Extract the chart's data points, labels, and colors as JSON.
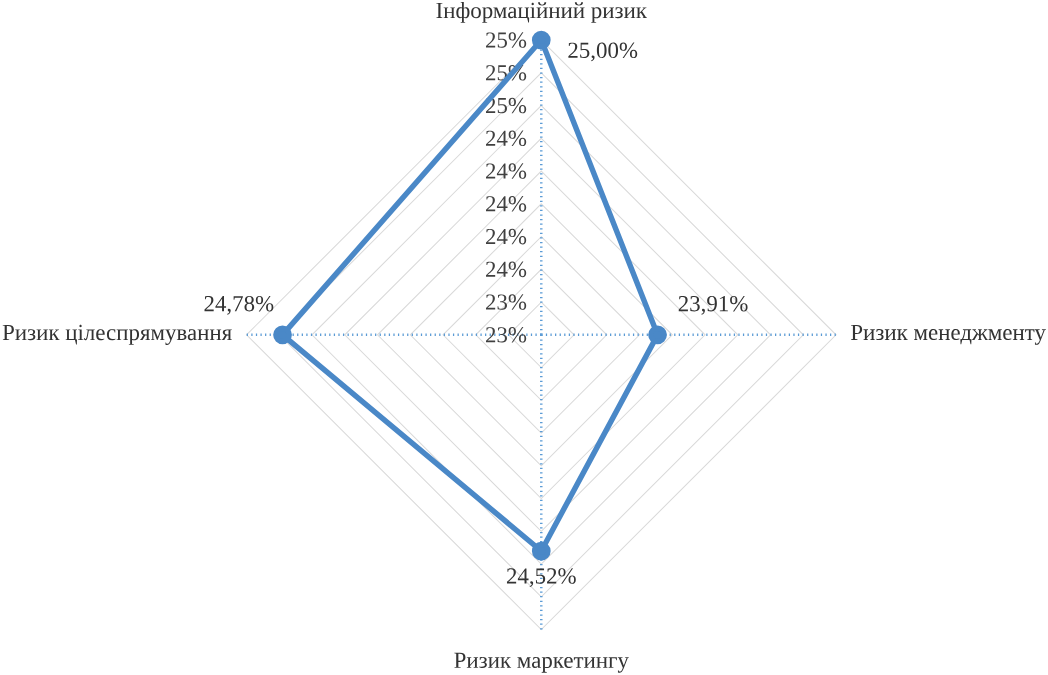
{
  "chart_data": {
    "type": "radar",
    "categories": [
      "Інформаційний ризик",
      "Ризик менеджменту",
      "Ризик маркетингу",
      "Ризик цілеспрямування"
    ],
    "series": [
      {
        "color": "#4a88c7",
        "values": [
          25.0,
          23.91,
          24.52,
          24.78
        ],
        "value_labels": [
          "25,00%",
          "23,91%",
          "24,52%",
          "24,78%"
        ]
      }
    ],
    "ylim": [
      23.2,
      25.0
    ],
    "yticks": [
      {
        "value": 23.2,
        "label": "23%"
      },
      {
        "value": 23.4,
        "label": "23%"
      },
      {
        "value": 23.6,
        "label": "24%"
      },
      {
        "value": 23.8,
        "label": "24%"
      },
      {
        "value": 24.0,
        "label": "24%"
      },
      {
        "value": 24.2,
        "label": "24%"
      },
      {
        "value": 24.4,
        "label": "24%"
      },
      {
        "value": 24.6,
        "label": "25%"
      },
      {
        "value": 24.8,
        "label": "25%"
      },
      {
        "value": 25.0,
        "label": "25%"
      }
    ],
    "grid": true,
    "marker": "circle"
  }
}
